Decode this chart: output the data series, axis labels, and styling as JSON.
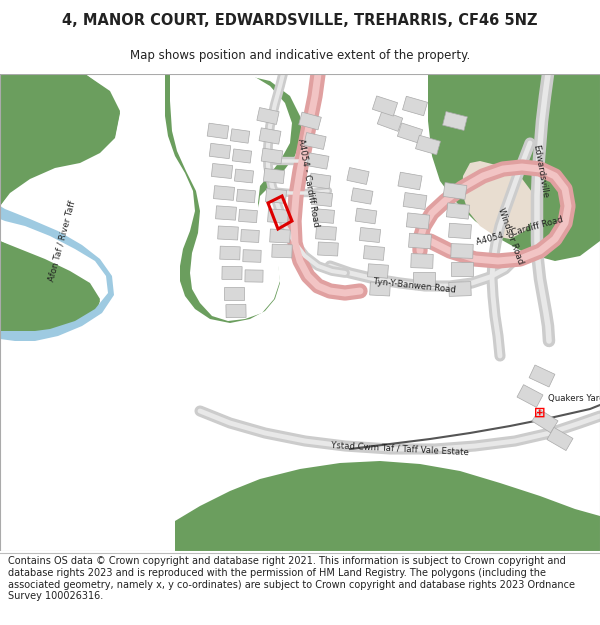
{
  "title_line1": "4, MANOR COURT, EDWARDSVILLE, TREHARRIS, CF46 5NZ",
  "title_line2": "Map shows position and indicative extent of the property.",
  "footer_text": "Contains OS data © Crown copyright and database right 2021. This information is subject to Crown copyright and database rights 2023 and is reproduced with the permission of HM Land Registry. The polygons (including the associated geometry, namely x, y co-ordinates) are subject to Crown copyright and database rights 2023 Ordnance Survey 100026316.",
  "green": "#6b9e5e",
  "water": "#9ecae1",
  "road_main_c": "#f2c4c4",
  "road_main_e": "#e0a0a0",
  "road_minor_c": "#e8e8e8",
  "road_minor_e": "#cccccc",
  "building_f": "#d8d8d8",
  "building_e": "#aaaaaa",
  "highlight": "#dd0000",
  "tan": "#e8ddd0",
  "white": "#ffffff",
  "text_dark": "#222222",
  "title_fs": 10.5,
  "sub_fs": 8.5,
  "footer_fs": 7.0,
  "label_fs": 6.2
}
